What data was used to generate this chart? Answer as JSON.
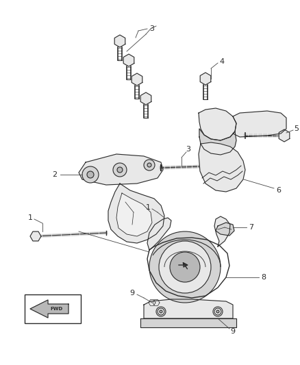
{
  "bg_color": "#ffffff",
  "fig_width": 4.38,
  "fig_height": 5.33,
  "dpi": 100,
  "line_color": "#2a2a2a",
  "label_fontsize": 8,
  "leader_color": "#444444"
}
